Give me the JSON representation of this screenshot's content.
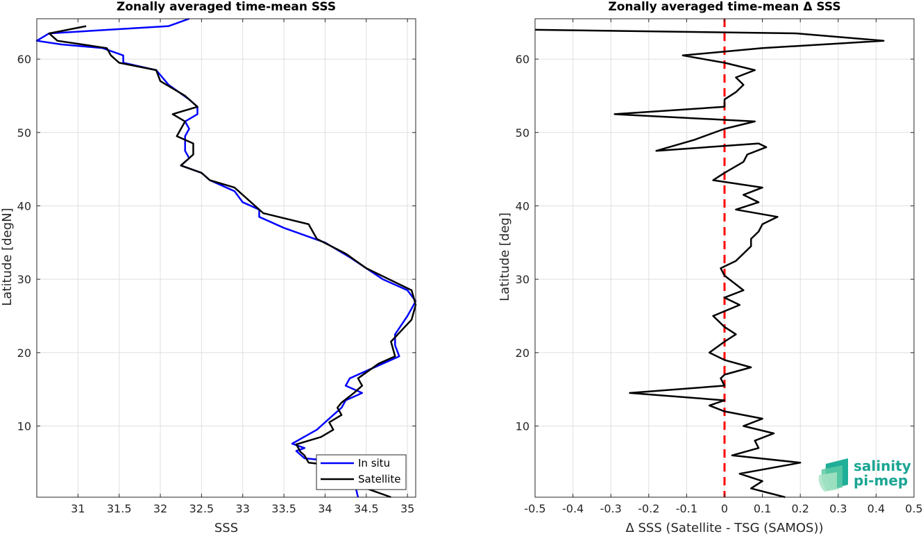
{
  "chart_data": [
    {
      "type": "line",
      "title": "Zonally averaged time-mean SSS",
      "xlabel": "SSS",
      "ylabel": "Latitude [degN]",
      "xlim": [
        30.5,
        35.1
      ],
      "ylim": [
        0.3,
        65.5
      ],
      "xticks": [
        31,
        31.5,
        32,
        32.5,
        33,
        33.5,
        34,
        34.5,
        35
      ],
      "xtick_labels": [
        "31",
        "31.5",
        "32",
        "32.5",
        "33",
        "33.5",
        "34",
        "34.5",
        "35"
      ],
      "yticks": [
        10,
        20,
        30,
        40,
        50,
        60
      ],
      "ytick_labels": [
        "10",
        "20",
        "30",
        "40",
        "50",
        "60"
      ],
      "grid": true,
      "legend_position": "bottom-right",
      "series": [
        {
          "name": "In situ",
          "color": "#0000ff",
          "points": [
            [
              34.4,
              0.3
            ],
            [
              34.3,
              5
            ],
            [
              33.75,
              5.6
            ],
            [
              33.65,
              6.6
            ],
            [
              33.75,
              7.0
            ],
            [
              33.6,
              7.6
            ],
            [
              33.9,
              9.5
            ],
            [
              34.0,
              10.5
            ],
            [
              34.1,
              11.5
            ],
            [
              34.2,
              12.5
            ],
            [
              34.25,
              13.5
            ],
            [
              34.45,
              14.5
            ],
            [
              34.25,
              15.5
            ],
            [
              34.3,
              16.5
            ],
            [
              34.5,
              17.5
            ],
            [
              34.7,
              18.5
            ],
            [
              34.9,
              19.5
            ],
            [
              34.85,
              21
            ],
            [
              34.85,
              22.5
            ],
            [
              35.0,
              25
            ],
            [
              35.1,
              27
            ],
            [
              35.0,
              28.5
            ],
            [
              34.7,
              30
            ],
            [
              34.5,
              31.5
            ],
            [
              34.3,
              33
            ],
            [
              34.0,
              35
            ],
            [
              33.5,
              37
            ],
            [
              33.2,
              38.5
            ],
            [
              33.2,
              39.5
            ],
            [
              33.0,
              40.5
            ],
            [
              32.9,
              42
            ],
            [
              32.6,
              43.5
            ],
            [
              32.5,
              44.5
            ],
            [
              32.25,
              45.5
            ],
            [
              32.35,
              46.5
            ],
            [
              32.3,
              47.5
            ],
            [
              32.3,
              49.5
            ],
            [
              32.35,
              50.5
            ],
            [
              32.3,
              51.5
            ],
            [
              32.45,
              52.5
            ],
            [
              32.45,
              53.5
            ],
            [
              32.35,
              54.5
            ],
            [
              32.1,
              56.5
            ],
            [
              31.95,
              58.5
            ],
            [
              31.55,
              59.5
            ],
            [
              31.55,
              60.5
            ],
            [
              31.3,
              61.5
            ],
            [
              30.8,
              62
            ],
            [
              30.5,
              62.5
            ],
            [
              30.65,
              63.5
            ],
            [
              32.1,
              64.5
            ],
            [
              32.35,
              65.5
            ]
          ]
        },
        {
          "name": "Satellite",
          "color": "#000000",
          "points": [
            [
              34.8,
              0.3
            ],
            [
              34.5,
              1.5
            ],
            [
              34.35,
              3.5
            ],
            [
              34.2,
              4.5
            ],
            [
              33.8,
              5.0
            ],
            [
              33.75,
              6.0
            ],
            [
              33.7,
              6.5
            ],
            [
              33.65,
              7.5
            ],
            [
              33.95,
              8.5
            ],
            [
              34.1,
              9.5
            ],
            [
              34.05,
              10.5
            ],
            [
              34.2,
              11.5
            ],
            [
              34.15,
              12.5
            ],
            [
              34.2,
              13.2
            ],
            [
              34.35,
              14.5
            ],
            [
              34.45,
              15.5
            ],
            [
              34.4,
              16.5
            ],
            [
              34.65,
              18.5
            ],
            [
              34.85,
              19.5
            ],
            [
              34.8,
              21.5
            ],
            [
              35.05,
              24.5
            ],
            [
              35.1,
              26.5
            ],
            [
              35.05,
              28.5
            ],
            [
              34.5,
              31.5
            ],
            [
              34.25,
              33.5
            ],
            [
              33.9,
              35.5
            ],
            [
              33.8,
              37.5
            ],
            [
              33.25,
              39
            ],
            [
              33.05,
              41
            ],
            [
              32.9,
              42.5
            ],
            [
              32.6,
              43.5
            ],
            [
              32.5,
              44.5
            ],
            [
              32.25,
              45.5
            ],
            [
              32.4,
              47.0
            ],
            [
              32.4,
              48.5
            ],
            [
              32.2,
              49.5
            ],
            [
              32.25,
              50.5
            ],
            [
              32.3,
              51.5
            ],
            [
              32.15,
              52.5
            ],
            [
              32.45,
              53.5
            ],
            [
              32.3,
              55
            ],
            [
              32.0,
              57
            ],
            [
              31.95,
              58.5
            ],
            [
              31.5,
              59.5
            ],
            [
              31.4,
              60.5
            ],
            [
              31.35,
              61.5
            ],
            [
              30.75,
              62.5
            ],
            [
              30.65,
              63.5
            ],
            [
              31.1,
              64.5
            ]
          ]
        }
      ]
    },
    {
      "type": "line",
      "title": "Zonally averaged time-mean Δ SSS",
      "xlabel": "Δ SSS (Satellite - TSG (SAMOS))",
      "ylabel": "Latitude [deg]",
      "xlim": [
        -0.5,
        0.5
      ],
      "ylim": [
        0.3,
        65.5
      ],
      "xticks": [
        -0.5,
        -0.4,
        -0.3,
        -0.2,
        -0.1,
        0,
        0.1,
        0.2,
        0.3,
        0.4,
        0.5
      ],
      "xtick_labels": [
        "-0.5",
        "-0.4",
        "-0.3",
        "-0.2",
        "-0.1",
        "0",
        "0.1",
        "0.2",
        "0.3",
        "0.4",
        "0.5"
      ],
      "yticks": [
        10,
        20,
        30,
        40,
        50,
        60
      ],
      "ytick_labels": [
        "10",
        "20",
        "30",
        "40",
        "50",
        "60"
      ],
      "grid": true,
      "reference_line": {
        "x": 0,
        "color": "#ff0000",
        "style": "dashed"
      },
      "series": [
        {
          "color": "#000000",
          "points": [
            [
              0.16,
              0.3
            ],
            [
              0.07,
              1.5
            ],
            [
              0.1,
              2.5
            ],
            [
              0.04,
              3.5
            ],
            [
              0.2,
              5.0
            ],
            [
              0.02,
              6.0
            ],
            [
              0.09,
              7.0
            ],
            [
              0.08,
              8.0
            ],
            [
              0.13,
              9.0
            ],
            [
              0.05,
              10.0
            ],
            [
              0.1,
              11.0
            ],
            [
              0.0,
              12.0
            ],
            [
              -0.04,
              12.8
            ],
            [
              0.0,
              13.5
            ],
            [
              -0.25,
              14.5
            ],
            [
              0.0,
              15.5
            ],
            [
              -0.01,
              16.5
            ],
            [
              0.0,
              17.0
            ],
            [
              0.07,
              18.0
            ],
            [
              0.0,
              19.0
            ],
            [
              -0.04,
              20.0
            ],
            [
              0.0,
              21.5
            ],
            [
              0.03,
              22.5
            ],
            [
              0.0,
              23.5
            ],
            [
              -0.03,
              25.0
            ],
            [
              0.04,
              26.5
            ],
            [
              0.0,
              27.5
            ],
            [
              0.05,
              28.5
            ],
            [
              0.0,
              30.5
            ],
            [
              -0.01,
              31.5
            ],
            [
              0.03,
              32.5
            ],
            [
              0.05,
              33.5
            ],
            [
              0.07,
              34.5
            ],
            [
              0.07,
              35.5
            ],
            [
              0.09,
              36.5
            ],
            [
              0.1,
              37.5
            ],
            [
              0.14,
              38.5
            ],
            [
              0.03,
              39.5
            ],
            [
              0.09,
              40.5
            ],
            [
              0.05,
              41.5
            ],
            [
              0.1,
              42.5
            ],
            [
              -0.03,
              43.5
            ],
            [
              0.0,
              44.5
            ],
            [
              0.05,
              46.0
            ],
            [
              0.06,
              47.0
            ],
            [
              0.11,
              48.0
            ],
            [
              0.09,
              48.5
            ],
            [
              -0.18,
              47.5
            ],
            [
              -0.08,
              49.0
            ],
            [
              0.0,
              50.5
            ],
            [
              0.08,
              51.5
            ],
            [
              -0.29,
              52.5
            ],
            [
              0.0,
              53.5
            ],
            [
              0.0,
              54.5
            ],
            [
              0.03,
              55.5
            ],
            [
              0.05,
              56.5
            ],
            [
              0.03,
              57.5
            ],
            [
              0.08,
              58.5
            ],
            [
              0.0,
              59.5
            ],
            [
              -0.11,
              60.5
            ],
            [
              0.1,
              61.5
            ],
            [
              0.42,
              62.5
            ],
            [
              0.19,
              63.5
            ],
            [
              -0.5,
              64.0
            ]
          ]
        }
      ]
    }
  ],
  "logo": {
    "line1": "salinity",
    "line2": "pi-mep"
  }
}
